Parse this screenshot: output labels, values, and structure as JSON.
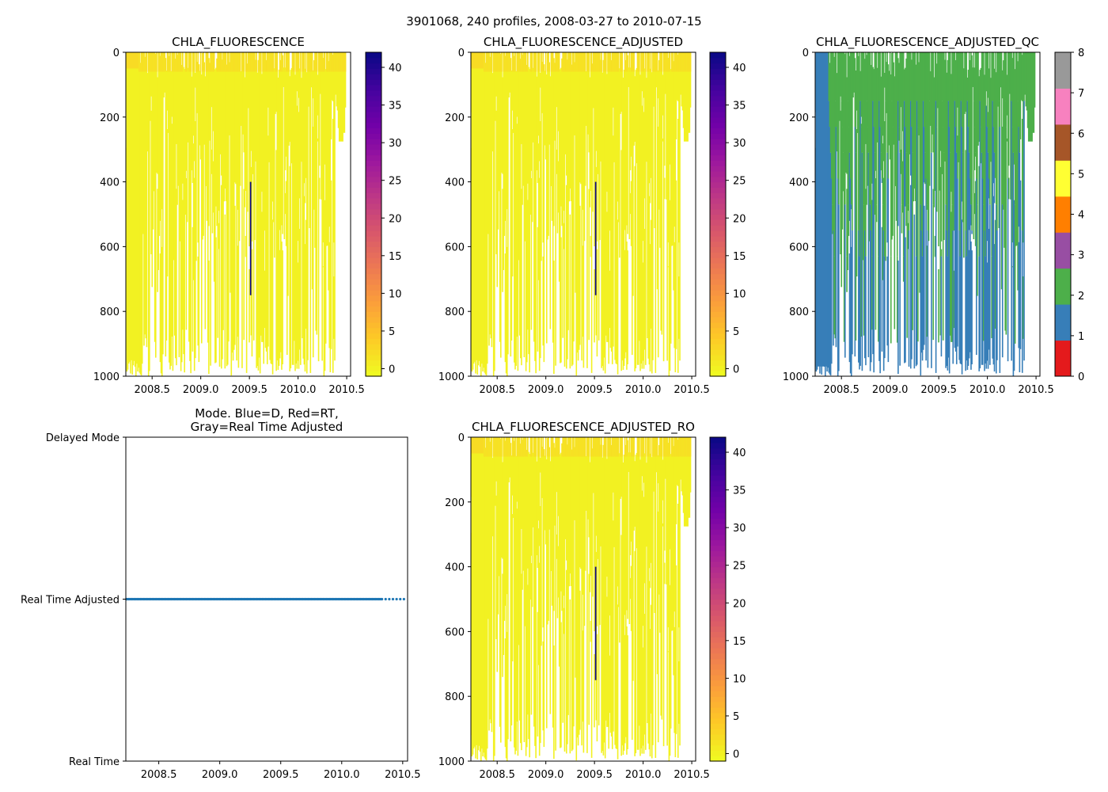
{
  "figure_title": "3901068, 240 profiles, 2008-03-27 to 2010-07-15",
  "colors": {
    "plasma_r_stops": [
      "#f0f921",
      "#fdca26",
      "#fb9f3a",
      "#ed7953",
      "#d8576b",
      "#bd3786",
      "#9c179e",
      "#7201a8",
      "#46039f",
      "#0d0887"
    ],
    "qc_classes": [
      "#e41a1c",
      "#377eb8",
      "#4daf4a",
      "#984ea3",
      "#ff7f00",
      "#ffff33",
      "#a65628",
      "#f781bf",
      "#999999"
    ],
    "mode_points": "#1f77b4",
    "axis": "#000000"
  },
  "chart_data": [
    {
      "id": "chla",
      "type": "heatmap",
      "title": "CHLA_FLUORESCENCE",
      "xlabel": "",
      "ylabel": "",
      "xlim": [
        2008.23,
        2010.54
      ],
      "ylim": [
        1000,
        0
      ],
      "xticks": [
        "2008.5",
        "2009.0",
        "2009.5",
        "2010.0",
        "2010.5"
      ],
      "yticks": [
        "0",
        "200",
        "400",
        "600",
        "800",
        "1000"
      ],
      "colorbar": {
        "min": -1,
        "max": 42,
        "ticks": [
          "0",
          "5",
          "10",
          "15",
          "20",
          "25",
          "30",
          "35",
          "40"
        ],
        "cmap": "plasma_r"
      },
      "anomaly_profile": {
        "x": 2009.505,
        "depth": [
          400,
          750
        ],
        "value": 42
      },
      "values_note": "nearly all values 0-2 mg/m3 (yellow); sparse profiles; right-side profiles end near 300 m"
    },
    {
      "id": "chla_adj",
      "type": "heatmap",
      "title": "CHLA_FLUORESCENCE_ADJUSTED",
      "xlim": [
        2008.23,
        2010.54
      ],
      "ylim": [
        1000,
        0
      ],
      "xticks": [
        "2008.5",
        "2009.0",
        "2009.5",
        "2010.0",
        "2010.5"
      ],
      "yticks": [
        "0",
        "200",
        "400",
        "600",
        "800",
        "1000"
      ],
      "colorbar": {
        "min": -1,
        "max": 42,
        "ticks": [
          "0",
          "5",
          "10",
          "15",
          "20",
          "25",
          "30",
          "35",
          "40"
        ],
        "cmap": "plasma_r"
      },
      "anomaly_profile": {
        "x": 2009.505,
        "depth": [
          400,
          750
        ],
        "value": 42
      }
    },
    {
      "id": "chla_adj_qc",
      "type": "heatmap",
      "title": "CHLA_FLUORESCENCE_ADJUSTED_QC",
      "xlim": [
        2008.23,
        2010.54
      ],
      "ylim": [
        1000,
        0
      ],
      "xticks": [
        "2008.5",
        "2009.0",
        "2009.5",
        "2010.0",
        "2010.5"
      ],
      "yticks": [
        "0",
        "200",
        "400",
        "600",
        "800",
        "1000"
      ],
      "colorbar": {
        "min": 0,
        "max": 8,
        "ticks": [
          "0",
          "1",
          "2",
          "3",
          "4",
          "5",
          "6",
          "7",
          "8"
        ],
        "cmap": "qc_classes"
      },
      "values_note": "early profiles (2008.25-2008.35) QC=1 (blue); most profiles QC=2 (green) near surface with QC=1 at depth"
    },
    {
      "id": "mode",
      "type": "scatter",
      "title": "Mode. Blue=D, Red=RT,\nGray=Real Time Adjusted",
      "title_lines": [
        "Mode. Blue=D, Red=RT,",
        "Gray=Real Time Adjusted"
      ],
      "xlim": [
        2008.23,
        2010.54
      ],
      "ylim": [
        0,
        2
      ],
      "xticks": [
        "2008.5",
        "2009.0",
        "2009.5",
        "2010.0",
        "2010.5"
      ],
      "yticks": [
        "Real Time",
        "Real Time Adjusted",
        "Delayed Mode"
      ],
      "x_range_points": [
        2008.235,
        2010.535
      ],
      "n_points": 240,
      "y": 1,
      "series_name": "Real Time Adjusted"
    },
    {
      "id": "chla_adj_ro",
      "type": "heatmap",
      "title": "CHLA_FLUORESCENCE_ADJUSTED_RO",
      "xlim": [
        2008.23,
        2010.54
      ],
      "ylim": [
        1000,
        0
      ],
      "xticks": [
        "2008.5",
        "2009.0",
        "2009.5",
        "2010.0",
        "2010.5"
      ],
      "yticks": [
        "0",
        "200",
        "400",
        "600",
        "800",
        "1000"
      ],
      "colorbar": {
        "min": -1,
        "max": 42,
        "ticks": [
          "0",
          "5",
          "10",
          "15",
          "20",
          "25",
          "30",
          "35",
          "40"
        ],
        "cmap": "plasma_r"
      },
      "anomaly_profile": {
        "x": 2009.505,
        "depth": [
          400,
          750
        ],
        "value": 42
      }
    }
  ]
}
